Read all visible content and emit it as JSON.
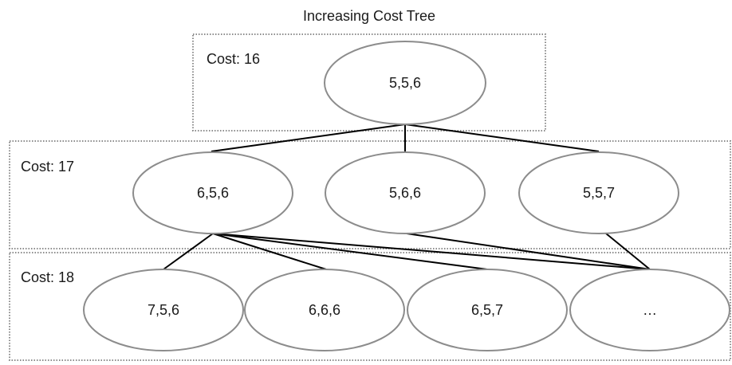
{
  "title": "Increasing Cost Tree",
  "levels": [
    {
      "label": "Cost: 16"
    },
    {
      "label": "Cost: 17"
    },
    {
      "label": "Cost: 18"
    }
  ],
  "nodes": [
    {
      "id": "n556",
      "label": "5,5,6"
    },
    {
      "id": "n656",
      "label": "6,5,6"
    },
    {
      "id": "n566",
      "label": "5,6,6"
    },
    {
      "id": "n557",
      "label": "5,5,7"
    },
    {
      "id": "n756",
      "label": "7,5,6"
    },
    {
      "id": "n666",
      "label": "6,6,6"
    },
    {
      "id": "n657",
      "label": "6,5,7"
    },
    {
      "id": "nmore",
      "label": "…"
    }
  ],
  "edges": [
    {
      "from": "n556",
      "to": "n656"
    },
    {
      "from": "n556",
      "to": "n566"
    },
    {
      "from": "n556",
      "to": "n557"
    },
    {
      "from": "n656",
      "to": "n756"
    },
    {
      "from": "n656",
      "to": "n666"
    },
    {
      "from": "n656",
      "to": "n657"
    },
    {
      "from": "n656",
      "to": "nmore"
    },
    {
      "from": "n566",
      "to": "nmore"
    },
    {
      "from": "n557",
      "to": "nmore"
    }
  ]
}
